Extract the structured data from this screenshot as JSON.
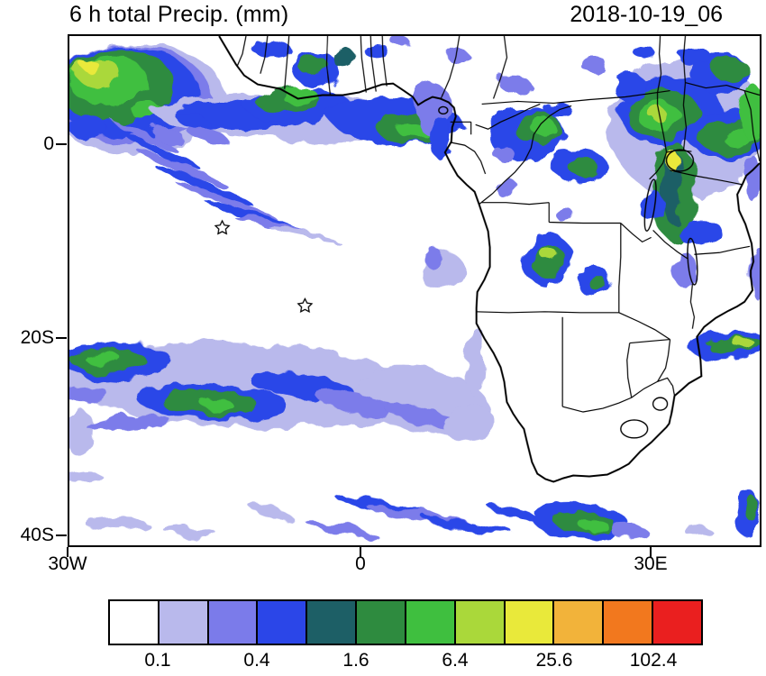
{
  "title": "6 h total Precip. (mm)",
  "timestamp": "2018-10-19_06",
  "chart_data": {
    "type": "heatmap",
    "title": "6 h total Precip. (mm)",
    "timestamp": "2018-10-19_06",
    "variable": "6-hour accumulated precipitation",
    "units": "mm",
    "region": "Tropical and southern Africa with adjacent South Atlantic Ocean",
    "grid": false,
    "x_axis": {
      "ticks": [
        {
          "label": "30W",
          "lon": -30
        },
        {
          "label": "0",
          "lon": 0
        },
        {
          "label": "30E",
          "lon": 30
        }
      ],
      "range_deg": [
        -30.3,
        41.5
      ]
    },
    "y_axis": {
      "ticks": [
        {
          "label": "0",
          "lat": 0
        },
        {
          "label": "20S",
          "lat": -20
        },
        {
          "label": "40S",
          "lat": -40
        }
      ],
      "range_deg": [
        11.4,
        -41.6
      ]
    },
    "colorbar": {
      "orientation": "horizontal",
      "levels": [
        0.1,
        0.2,
        0.4,
        0.8,
        1.6,
        3.2,
        6.4,
        12.8,
        25.6,
        51.2,
        102.4
      ],
      "labeled_levels": [
        "0.1",
        "0.4",
        "1.6",
        "6.4",
        "25.6",
        "102.4"
      ],
      "colors": [
        "#ffffff",
        "#b9b9ec",
        "#7b7bea",
        "#2b46e8",
        "#1d5f66",
        "#2e8b3f",
        "#3fbf3f",
        "#aad83a",
        "#e9e93a",
        "#f2b33a",
        "#f2781e",
        "#ea1f1f"
      ]
    },
    "markers": [
      {
        "symbol": "star",
        "lon": -14.4,
        "lat": -8.6
      },
      {
        "symbol": "star",
        "lon": -5.8,
        "lat": -16.7
      }
    ],
    "precip_features": [
      "Heavy ITCZ convection (cores > 6.4 mm, specks > 25.6 mm) over the eastern tropical Atlantic near the top-left corner (about 25-30W, 0-8N)",
      "Rain band along ~4-6N hugging the Gulf of Guinea coast from Liberia to the Niger Delta and Cameroon, with green cores > 6.4 mm",
      "Fan of light shower streaks (0.1-1.6 mm) over the open Atlantic between about 20W-5W and 2S-10S",
      "Scattered convective clusters over the Congo basin and Angola highlands (1.6-12.8 mm)",
      "Widespread convection over East Africa; strongest cell with > 25.6 mm (yellow) over the Lake Victoria region, more cores over Kenya/Tanzania and the Ethiopian area",
      "Rain patches along the Mozambique coast near 20S and near the Tanzanian coast",
      "Zonal frontal rain band across the South Atlantic near 20-25S from 30W to about 5E with embedded cores > 6.4 mm",
      "Light rain streaks along the southern edge (35-40S) and a band southeast of South Africa near 25-30E"
    ]
  }
}
